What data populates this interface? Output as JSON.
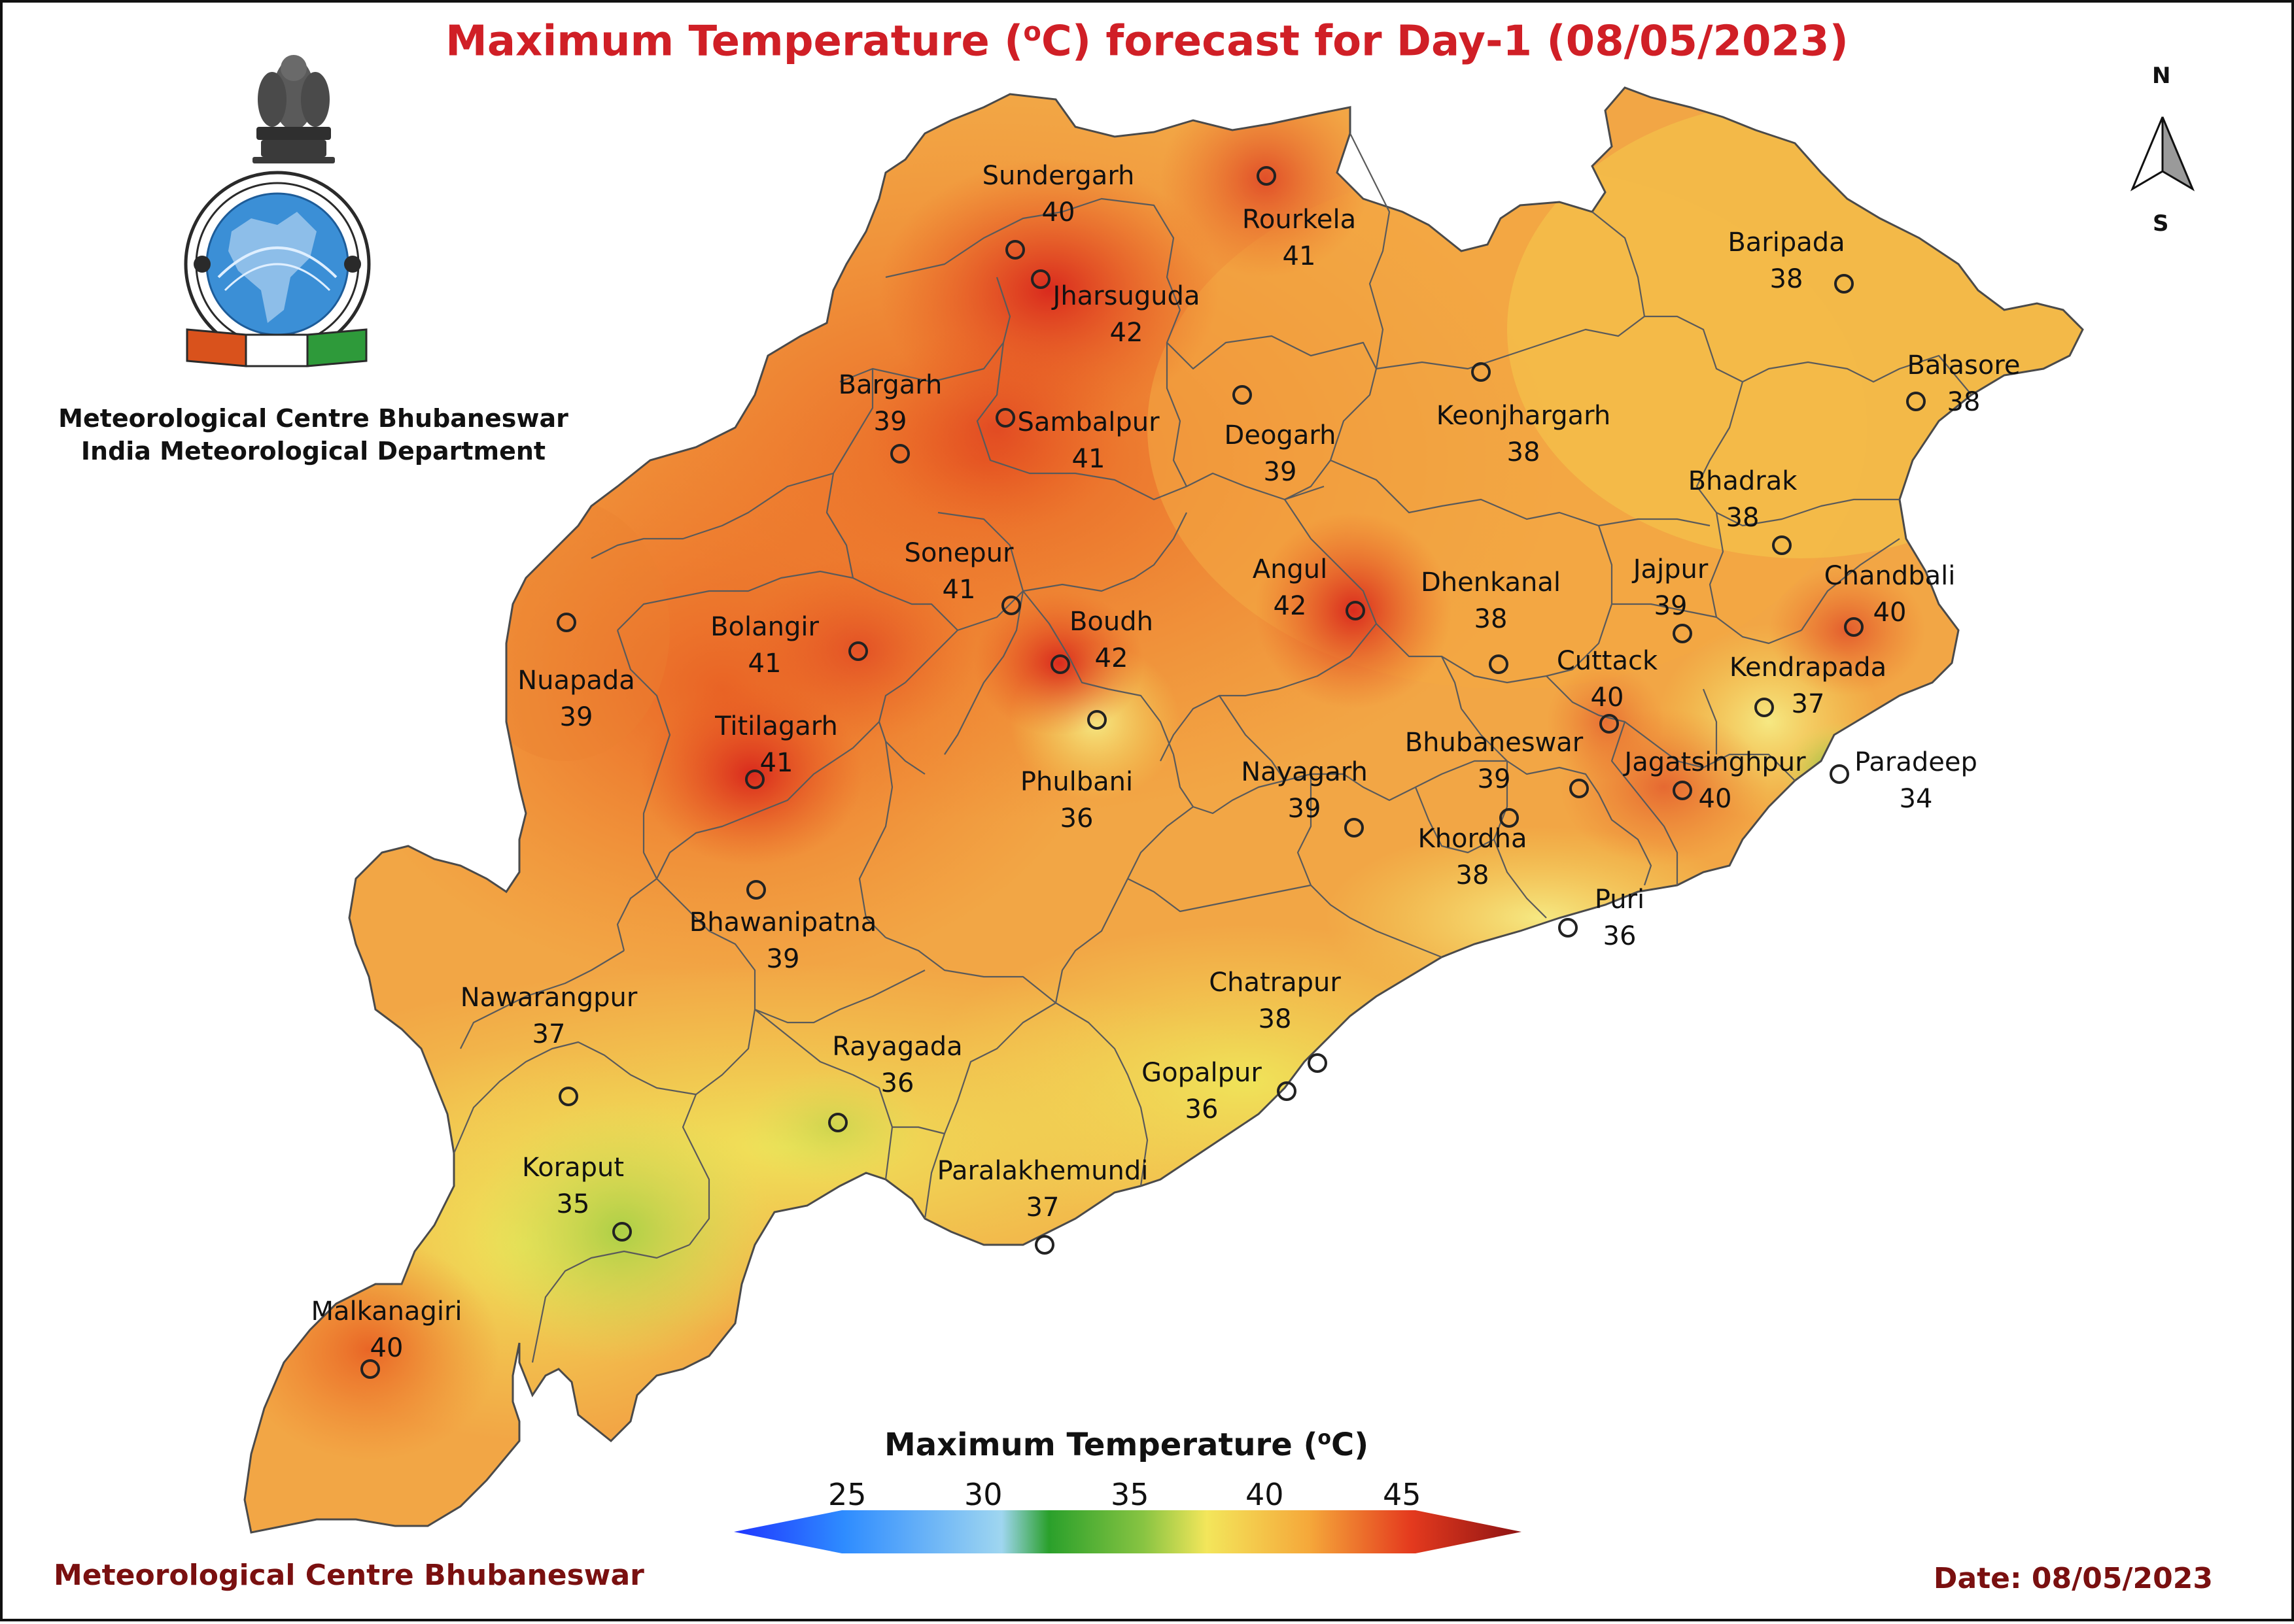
{
  "title": {
    "prefix": "Maximum Temperature (",
    "sup": "o",
    "suffix": "C) forecast for Day-1 (08/05/2023)"
  },
  "organization": {
    "line1": "Meteorological Centre Bhubaneswar",
    "line2": "India Meteorological Department"
  },
  "logo": {
    "emblem": "national-emblem-of-india",
    "seal": "imd-seal"
  },
  "compass": {
    "north": "N",
    "south": "S"
  },
  "legend": {
    "title_prefix": "Maximum Temperature (",
    "title_sup": "o",
    "title_suffix": "C)",
    "ticks": [
      "25",
      "30",
      "35",
      "40",
      "45"
    ],
    "colors": [
      "#1f35ff",
      "#2e8cff",
      "#9fd6f0",
      "#2aa02b",
      "#88c442",
      "#f3e65b",
      "#f5a83a",
      "#e43a1e",
      "#8d1313"
    ]
  },
  "footer": {
    "left": "Meteorological Centre Bhubaneswar",
    "right": "Date: 08/05/2023"
  },
  "stations": [
    {
      "name": "Sundergarh",
      "value": "40"
    },
    {
      "name": "Rourkela",
      "value": "41"
    },
    {
      "name": "Jharsuguda",
      "value": "42"
    },
    {
      "name": "Baripada",
      "value": "38"
    },
    {
      "name": "Balasore",
      "value": "38"
    },
    {
      "name": "Bargarh",
      "value": "39"
    },
    {
      "name": "Sambalpur",
      "value": "41"
    },
    {
      "name": "Deogarh",
      "value": "39"
    },
    {
      "name": "Keonjhargarh",
      "value": "38"
    },
    {
      "name": "Bhadrak",
      "value": "38"
    },
    {
      "name": "Sonepur",
      "value": "41"
    },
    {
      "name": "Angul",
      "value": "42"
    },
    {
      "name": "Dhenkanal",
      "value": "38"
    },
    {
      "name": "Jajpur",
      "value": "39"
    },
    {
      "name": "Chandbali",
      "value": "40"
    },
    {
      "name": "Bolangir",
      "value": "41"
    },
    {
      "name": "Boudh",
      "value": "42"
    },
    {
      "name": "Nuapada",
      "value": "39"
    },
    {
      "name": "Cuttack",
      "value": "40"
    },
    {
      "name": "Kendrapada",
      "value": "37"
    },
    {
      "name": "Titilagarh",
      "value": "41"
    },
    {
      "name": "Phulbani",
      "value": "36"
    },
    {
      "name": "Nayagarh",
      "value": "39"
    },
    {
      "name": "Bhubaneswar",
      "value": "39"
    },
    {
      "name": "Jagatsinghpur",
      "value": "40"
    },
    {
      "name": "Paradeep",
      "value": "34"
    },
    {
      "name": "Khordha",
      "value": "38"
    },
    {
      "name": "Bhawanipatna",
      "value": "39"
    },
    {
      "name": "Puri",
      "value": "36"
    },
    {
      "name": "Nawarangpur",
      "value": "37"
    },
    {
      "name": "Chatrapur",
      "value": "38"
    },
    {
      "name": "Rayagada",
      "value": "36"
    },
    {
      "name": "Gopalpur",
      "value": "36"
    },
    {
      "name": "Koraput",
      "value": "35"
    },
    {
      "name": "Paralakhemundi",
      "value": "37"
    },
    {
      "name": "Malkanagiri",
      "value": "40"
    }
  ]
}
